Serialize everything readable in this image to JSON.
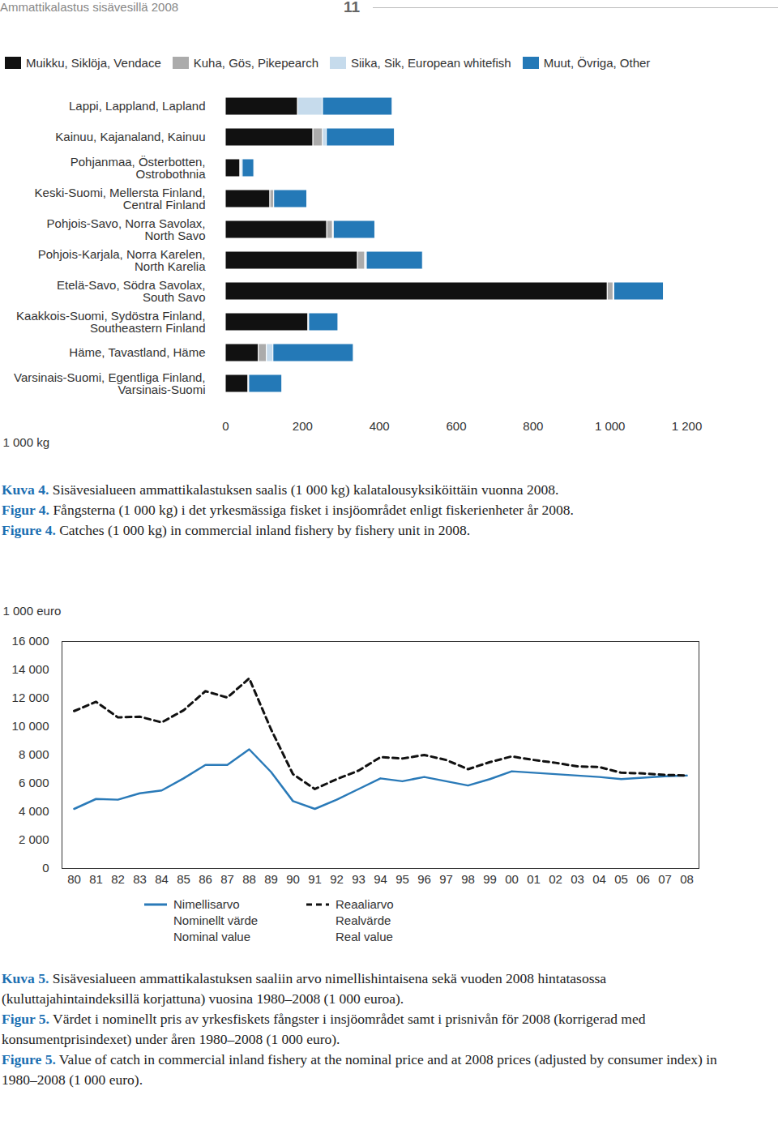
{
  "page": {
    "header": "Ammattikalastus sisävesillä 2008",
    "page_number": "11"
  },
  "chart_data": [
    {
      "type": "bar",
      "orientation": "horizontal",
      "stacked": true,
      "grid": false,
      "legend": "top",
      "categories": [
        "Lappi, Lappland, Lapland",
        "Kainuu, Kajanaland, Kainuu",
        "Pohjanmaa, Österbotten, Ostrobothnia",
        "Keski-Suomi, Mellersta Finland, Central Finland",
        "Pohjois-Savo, Norra Savolax, North Savo",
        "Pohjois-Karjala, Norra Karelen, North Karelia",
        "Etelä-Savo, Södra Savolax, South Savo",
        "Kaakkois-Suomi, Sydöstra Finland, Southeastern Finland",
        "Häme, Tavastland, Häme",
        "Varsinais-Suomi, Egentliga Finland, Varsinais-Suomi"
      ],
      "series": [
        {
          "name": "Muikku, Siklöja, Vendace",
          "color": "#111111",
          "values": [
            188,
            228,
            38,
            116,
            264,
            344,
            994,
            215,
            86,
            59
          ]
        },
        {
          "name": "Kuha, Gös, Pikepearch",
          "color": "#ababab",
          "values": [
            0,
            25,
            2,
            10,
            15,
            19,
            15,
            2,
            21,
            2
          ]
        },
        {
          "name": "Siika, Sik, European whitefish",
          "color": "#c6dbec",
          "values": [
            65,
            10,
            4,
            0,
            2,
            4,
            2,
            0,
            17,
            0
          ]
        },
        {
          "name": "Muut, Övriga, Other",
          "color": "#2479b7",
          "values": [
            181,
            177,
            30,
            86,
            108,
            146,
            129,
            76,
            209,
            86
          ]
        }
      ],
      "xlim": [
        0,
        1200
      ],
      "xticks": [
        0,
        200,
        400,
        600,
        800,
        {
          "value": 1000,
          "label": "1 000"
        },
        {
          "value": 1200,
          "label": "1 200"
        }
      ],
      "xlabel": "1 000 kg",
      "captions": [
        {
          "label": "Kuva 4.",
          "text": "Sisävesialueen ammattikalastuksen saalis (1 000 kg) kalatalousyksiköittäin vuonna 2008."
        },
        {
          "label": "Figur 4.",
          "text": "Fångsterna (1 000 kg) i det yrkesmässiga fisket i insjöområdet enligt  fiskerienheter år 2008."
        },
        {
          "label": "Figure 4.",
          "text": "Catches (1 000 kg) in commercial inland fishery by fishery unit in 2008."
        }
      ]
    },
    {
      "type": "line",
      "grid": false,
      "legend": "bottom",
      "categories": [
        "80",
        "81",
        "82",
        "83",
        "84",
        "85",
        "86",
        "87",
        "88",
        "89",
        "90",
        "91",
        "92",
        "93",
        "94",
        "95",
        "96",
        "97",
        "98",
        "99",
        "00",
        "01",
        "02",
        "03",
        "04",
        "05",
        "06",
        "07",
        "08"
      ],
      "series": [
        {
          "name": "Nimellisarvo\nNominellt värde\nNominal value",
          "color": "#2a7ab8",
          "line_style": "solid",
          "values": [
            4200,
            4900,
            4850,
            5300,
            5500,
            6350,
            7300,
            7300,
            8400,
            6800,
            4750,
            4200,
            4850,
            5600,
            6350,
            6150,
            6450,
            6150,
            5850,
            6300,
            6850,
            6750,
            6650,
            6550,
            6450,
            6300,
            6400,
            6500,
            6550
          ]
        },
        {
          "name": "Reaaliarvo\nRealvärde\nReal value",
          "color": "#111111",
          "line_style": "dashed",
          "values": [
            11100,
            11750,
            10650,
            10700,
            10300,
            11150,
            12500,
            12050,
            13400,
            9800,
            6650,
            5600,
            6300,
            6900,
            7850,
            7750,
            8000,
            7650,
            7000,
            7500,
            7900,
            7650,
            7450,
            7200,
            7150,
            6750,
            6700,
            6600,
            6550
          ]
        }
      ],
      "ylim": [
        0,
        16000
      ],
      "yticks": [
        0,
        {
          "value": 2000,
          "label": "2 000"
        },
        {
          "value": 4000,
          "label": "4 000"
        },
        {
          "value": 6000,
          "label": "6 000"
        },
        {
          "value": 8000,
          "label": "8 000"
        },
        {
          "value": 10000,
          "label": "10 000"
        },
        {
          "value": 12000,
          "label": "12 000"
        },
        {
          "value": 14000,
          "label": "14 000"
        },
        {
          "value": 16000,
          "label": "16 000"
        }
      ],
      "ylabel": "1 000 euro",
      "captions": [
        {
          "label": "Kuva 5.",
          "text": "Sisävesialueen ammattikalastuksen saaliin arvo nimellishintaisena sekä vuoden 2008 hintatasossa (kuluttajahintaindeksillä korjattuna) vuosina 1980–2008 (1 000 euroa)."
        },
        {
          "label": "Figur 5.",
          "text": "Värdet i nominellt pris av yrkesfiskets fångster i insjöområdet samt i prisnivån för 2008 (korrigerad med konsumentprisindexet) under åren 1980–2008 (1 000 euro)."
        },
        {
          "label": "Figure 5.",
          "text": "Value of catch in commercial inland fishery at the nominal price and at 2008 prices (adjusted by consumer index) in 1980–2008 (1 000 euro)."
        }
      ]
    }
  ]
}
